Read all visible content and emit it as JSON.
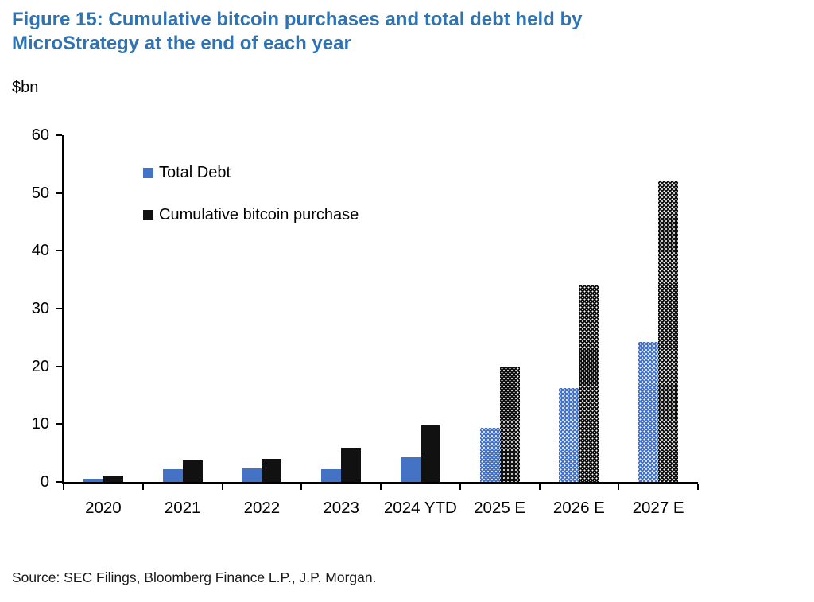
{
  "figure": {
    "title": "Figure 15: Cumulative bitcoin purchases and total debt held by MicroStrategy at the end of each year",
    "title_color": "#2e74b5",
    "unit_label": "$bn",
    "source": "Source: SEC Filings, Bloomberg Finance L.P., J.P. Morgan."
  },
  "chart_data": {
    "type": "bar",
    "title": "Cumulative bitcoin purchases and total debt held by MicroStrategy at the end of each year",
    "ylabel": "$bn",
    "categories": [
      "2020",
      "2021",
      "2022",
      "2023",
      "2024 YTD",
      "2025 E",
      "2026 E",
      "2027 E"
    ],
    "series": [
      {
        "name": "Total Debt",
        "color": "#4472c4",
        "values": [
          0.5,
          2.2,
          2.4,
          2.2,
          4.3,
          9.3,
          16.3,
          24.2
        ]
      },
      {
        "name": "Cumulative bitcoin purchase",
        "color": "#111111",
        "values": [
          1.1,
          3.7,
          4.0,
          5.9,
          9.9,
          20,
          34,
          52
        ]
      }
    ],
    "estimated_categories": [
      "2025 E",
      "2026 E",
      "2027 E"
    ],
    "ylim": [
      0,
      60
    ],
    "yticks": [
      0,
      10,
      20,
      30,
      40,
      50,
      60
    ],
    "grid": false,
    "legend_position": "upper-left-inside"
  }
}
